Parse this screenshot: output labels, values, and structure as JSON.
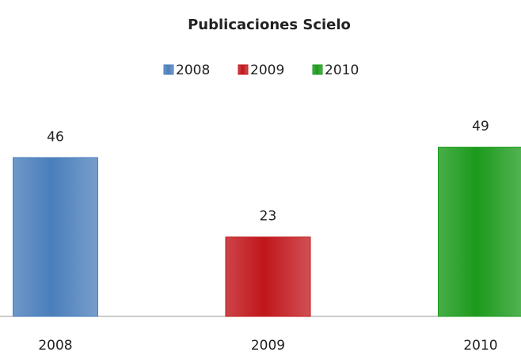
{
  "chart_data": {
    "type": "bar",
    "title": "Publicaciones Scielo",
    "categories": [
      "2008",
      "2009",
      "2010"
    ],
    "series": [
      {
        "name": "2008",
        "color": "#4a7ebb",
        "values": [
          46,
          null,
          null
        ]
      },
      {
        "name": "2009",
        "color": "#c0161b",
        "values": [
          null,
          23,
          null
        ]
      },
      {
        "name": "2010",
        "color": "#1b9a1b",
        "values": [
          null,
          null,
          49
        ]
      }
    ],
    "ylim": [
      0,
      55
    ]
  }
}
